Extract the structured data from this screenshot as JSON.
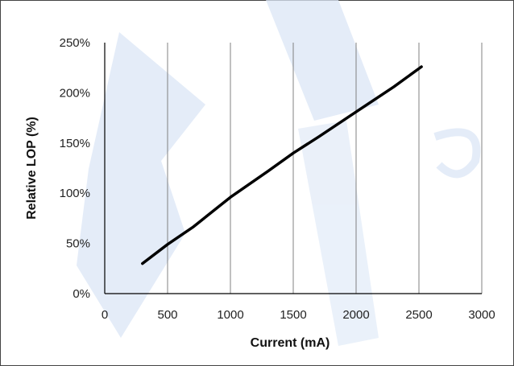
{
  "chart_data": {
    "type": "line",
    "title": "",
    "xlabel": "Current (mA)",
    "ylabel": "Relative LOP (%)",
    "xlim": [
      0,
      3000
    ],
    "ylim": [
      0,
      250
    ],
    "x_ticks": [
      0,
      500,
      1000,
      1500,
      2000,
      2500,
      3000
    ],
    "x_tick_labels": [
      "0",
      "500",
      "1000",
      "1500",
      "2000",
      "2500",
      "3000"
    ],
    "y_ticks": [
      0,
      50,
      100,
      150,
      200,
      250
    ],
    "y_tick_labels": [
      "0%",
      "50%",
      "100%",
      "150%",
      "200%",
      "250%"
    ],
    "grid": {
      "vertical": true,
      "horizontal": false
    },
    "legend": "none",
    "series": [
      {
        "color": "#000000",
        "x": [
          300,
          500,
          700,
          1000,
          1300,
          1500,
          1700,
          2000,
          2300,
          2520
        ],
        "y": [
          30,
          49,
          66,
          96,
          122,
          140,
          156,
          181,
          206,
          226
        ]
      }
    ]
  },
  "colors": {
    "watermark": "#d6e3f5",
    "grid": "#808080",
    "axis": "#000000",
    "line": "#000000"
  }
}
